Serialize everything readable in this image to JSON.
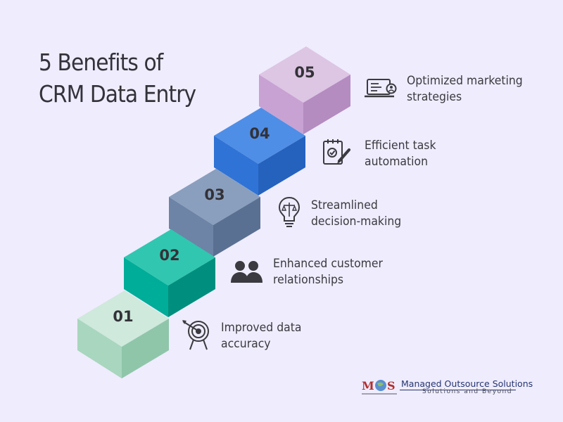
{
  "title": {
    "line1": "5 Benefits of",
    "line2": "CRM Data Entry"
  },
  "steps": [
    {
      "number": "01",
      "line1": "Improved data",
      "line2": "accuracy",
      "icon": "target-icon",
      "colors": {
        "top": "#cfe9dc",
        "front": "#a8d6be",
        "side": "#8fc6aa"
      }
    },
    {
      "number": "02",
      "line1": "Enhanced customer",
      "line2": "relationships",
      "icon": "people-icon",
      "colors": {
        "top": "#31c6b0",
        "front": "#00ad98",
        "side": "#008f7e"
      }
    },
    {
      "number": "03",
      "line1": "Streamlined",
      "line2": "decision-making",
      "icon": "lightbulb-icon",
      "colors": {
        "top": "#8a9fbd",
        "front": "#6d84a6",
        "side": "#5a7092"
      }
    },
    {
      "number": "04",
      "line1": "Efficient task",
      "line2": "automation",
      "icon": "checklist-icon",
      "colors": {
        "top": "#4f8ee6",
        "front": "#2f73d6",
        "side": "#2562bd"
      }
    },
    {
      "number": "05",
      "line1": "Optimized marketing",
      "line2": "strategies",
      "icon": "laptop-icon",
      "colors": {
        "top": "#ddc5e4",
        "front": "#c8a2d2",
        "side": "#b48cc0"
      }
    }
  ],
  "logo": {
    "name": "Managed Outsource Solutions",
    "tagline": "Solutions and Beyond",
    "mark": "MOS"
  }
}
